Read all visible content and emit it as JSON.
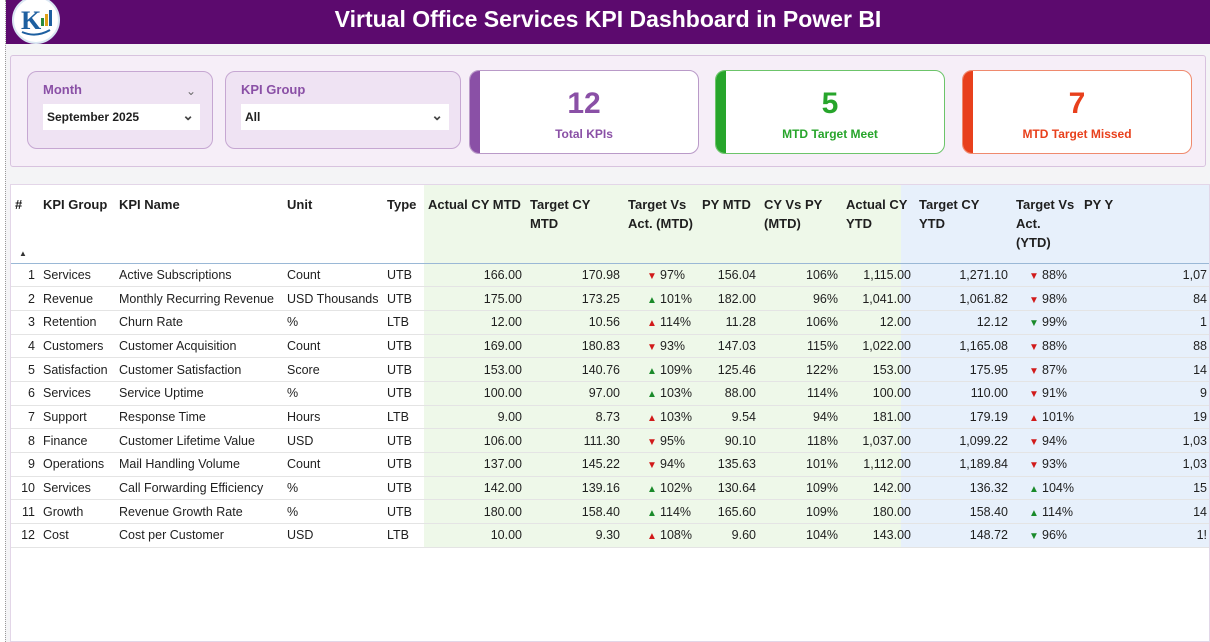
{
  "header": {
    "title": "Virtual Office Services KPI Dashboard in Power BI"
  },
  "filters": {
    "month": {
      "label": "Month",
      "value": "September 2025"
    },
    "kpi_group": {
      "label": "KPI Group",
      "value": "All"
    }
  },
  "cards": {
    "total": {
      "value": "12",
      "label": "Total KPIs",
      "color": "#8a50a6"
    },
    "met": {
      "value": "5",
      "label": "MTD Target Meet",
      "color": "#27a52b"
    },
    "missed": {
      "value": "7",
      "label": "MTD Target Missed",
      "color": "#e8401c"
    }
  },
  "table": {
    "columns": [
      "#",
      "KPI Group",
      "KPI Name",
      "Unit",
      "Type",
      "Actual CY MTD",
      "Target CY MTD",
      "Target Vs Act. (MTD)",
      "PY MTD",
      "CY Vs PY (MTD)",
      "Actual CY YTD",
      "Target CY YTD",
      "Target Vs Act. (YTD)",
      "PY Y"
    ],
    "rows": [
      {
        "n": "1",
        "group": "Services",
        "name": "Active Subscriptions",
        "unit": "Count",
        "type": "UTB",
        "act_mtd": "166.00",
        "tgt_mtd": "170.98",
        "mtd_arrow": "down",
        "mtd_pct": "97%",
        "py_mtd": "156.04",
        "cy_py": "106%",
        "act_ytd": "1,115.00",
        "tgt_ytd": "1,271.10",
        "ytd_arrow": "down",
        "ytd_pct": "88%",
        "py_ytd": "1,07"
      },
      {
        "n": "2",
        "group": "Revenue",
        "name": "Monthly Recurring Revenue",
        "unit": "USD Thousands",
        "type": "UTB",
        "act_mtd": "175.00",
        "tgt_mtd": "173.25",
        "mtd_arrow": "up",
        "mtd_pct": "101%",
        "py_mtd": "182.00",
        "cy_py": "96%",
        "act_ytd": "1,041.00",
        "tgt_ytd": "1,061.82",
        "ytd_arrow": "down",
        "ytd_pct": "98%",
        "py_ytd": "84"
      },
      {
        "n": "3",
        "group": "Retention",
        "name": "Churn Rate",
        "unit": "%",
        "type": "LTB",
        "act_mtd": "12.00",
        "tgt_mtd": "10.56",
        "mtd_arrow": "bad-up",
        "mtd_pct": "114%",
        "py_mtd": "11.28",
        "cy_py": "106%",
        "act_ytd": "12.00",
        "tgt_ytd": "12.12",
        "ytd_arrow": "good-down",
        "ytd_pct": "99%",
        "py_ytd": "1"
      },
      {
        "n": "4",
        "group": "Customers",
        "name": "Customer Acquisition",
        "unit": "Count",
        "type": "UTB",
        "act_mtd": "169.00",
        "tgt_mtd": "180.83",
        "mtd_arrow": "down",
        "mtd_pct": "93%",
        "py_mtd": "147.03",
        "cy_py": "115%",
        "act_ytd": "1,022.00",
        "tgt_ytd": "1,165.08",
        "ytd_arrow": "down",
        "ytd_pct": "88%",
        "py_ytd": "88"
      },
      {
        "n": "5",
        "group": "Satisfaction",
        "name": "Customer Satisfaction",
        "unit": "Score",
        "type": "UTB",
        "act_mtd": "153.00",
        "tgt_mtd": "140.76",
        "mtd_arrow": "up",
        "mtd_pct": "109%",
        "py_mtd": "125.46",
        "cy_py": "122%",
        "act_ytd": "153.00",
        "tgt_ytd": "175.95",
        "ytd_arrow": "down",
        "ytd_pct": "87%",
        "py_ytd": "14"
      },
      {
        "n": "6",
        "group": "Services",
        "name": "Service Uptime",
        "unit": "%",
        "type": "UTB",
        "act_mtd": "100.00",
        "tgt_mtd": "97.00",
        "mtd_arrow": "up",
        "mtd_pct": "103%",
        "py_mtd": "88.00",
        "cy_py": "114%",
        "act_ytd": "100.00",
        "tgt_ytd": "110.00",
        "ytd_arrow": "down",
        "ytd_pct": "91%",
        "py_ytd": "9"
      },
      {
        "n": "7",
        "group": "Support",
        "name": "Response Time",
        "unit": "Hours",
        "type": "LTB",
        "act_mtd": "9.00",
        "tgt_mtd": "8.73",
        "mtd_arrow": "bad-up",
        "mtd_pct": "103%",
        "py_mtd": "9.54",
        "cy_py": "94%",
        "act_ytd": "181.00",
        "tgt_ytd": "179.19",
        "ytd_arrow": "bad-up",
        "ytd_pct": "101%",
        "py_ytd": "19"
      },
      {
        "n": "8",
        "group": "Finance",
        "name": "Customer Lifetime Value",
        "unit": "USD",
        "type": "UTB",
        "act_mtd": "106.00",
        "tgt_mtd": "111.30",
        "mtd_arrow": "down",
        "mtd_pct": "95%",
        "py_mtd": "90.10",
        "cy_py": "118%",
        "act_ytd": "1,037.00",
        "tgt_ytd": "1,099.22",
        "ytd_arrow": "down",
        "ytd_pct": "94%",
        "py_ytd": "1,03"
      },
      {
        "n": "9",
        "group": "Operations",
        "name": "Mail Handling Volume",
        "unit": "Count",
        "type": "UTB",
        "act_mtd": "137.00",
        "tgt_mtd": "145.22",
        "mtd_arrow": "down",
        "mtd_pct": "94%",
        "py_mtd": "135.63",
        "cy_py": "101%",
        "act_ytd": "1,112.00",
        "tgt_ytd": "1,189.84",
        "ytd_arrow": "down",
        "ytd_pct": "93%",
        "py_ytd": "1,03"
      },
      {
        "n": "10",
        "group": "Services",
        "name": "Call Forwarding Efficiency",
        "unit": "%",
        "type": "UTB",
        "act_mtd": "142.00",
        "tgt_mtd": "139.16",
        "mtd_arrow": "up",
        "mtd_pct": "102%",
        "py_mtd": "130.64",
        "cy_py": "109%",
        "act_ytd": "142.00",
        "tgt_ytd": "136.32",
        "ytd_arrow": "up",
        "ytd_pct": "104%",
        "py_ytd": "15"
      },
      {
        "n": "11",
        "group": "Growth",
        "name": "Revenue Growth Rate",
        "unit": "%",
        "type": "UTB",
        "act_mtd": "180.00",
        "tgt_mtd": "158.40",
        "mtd_arrow": "up",
        "mtd_pct": "114%",
        "py_mtd": "165.60",
        "cy_py": "109%",
        "act_ytd": "180.00",
        "tgt_ytd": "158.40",
        "ytd_arrow": "up",
        "ytd_pct": "114%",
        "py_ytd": "14"
      },
      {
        "n": "12",
        "group": "Cost",
        "name": "Cost per Customer",
        "unit": "USD",
        "type": "LTB",
        "act_mtd": "10.00",
        "tgt_mtd": "9.30",
        "mtd_arrow": "bad-up",
        "mtd_pct": "108%",
        "py_mtd": "9.60",
        "cy_py": "104%",
        "act_ytd": "143.00",
        "tgt_ytd": "148.72",
        "ytd_arrow": "good-down",
        "ytd_pct": "96%",
        "py_ytd": "1!"
      }
    ]
  }
}
